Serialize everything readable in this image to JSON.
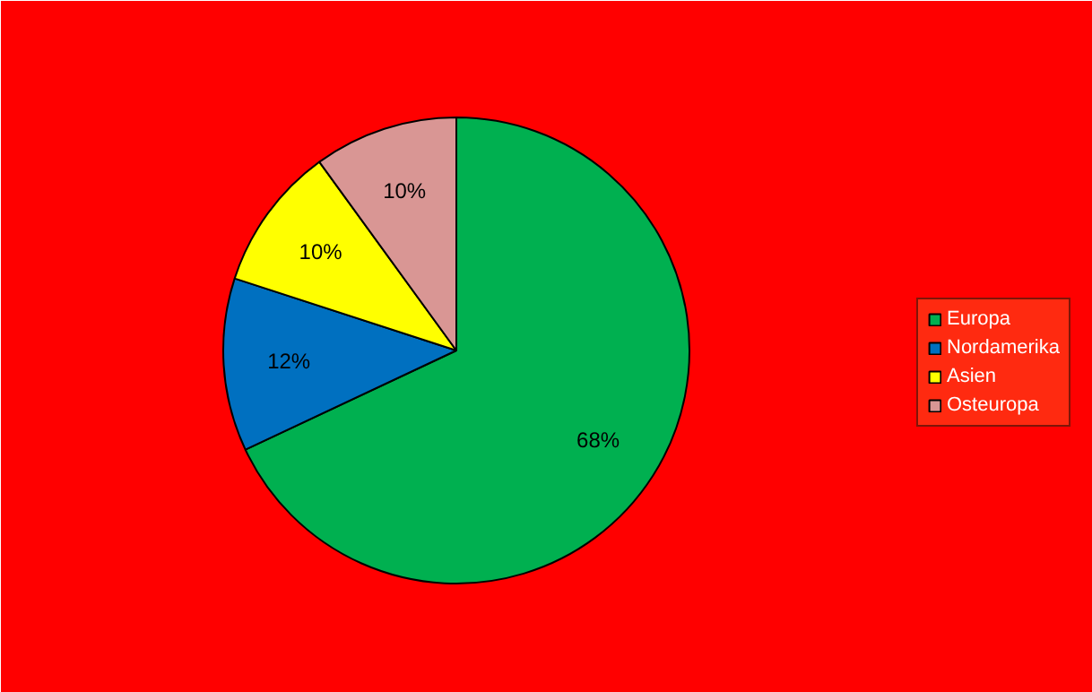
{
  "chart_data": {
    "type": "pie",
    "categories": [
      "Europa",
      "Nordamerika",
      "Asien",
      "Osteuropa"
    ],
    "values": [
      68,
      12,
      10,
      10
    ],
    "colors": [
      "#00b050",
      "#0070c0",
      "#ffff00",
      "#d99694"
    ],
    "value_labels": [
      "68%",
      "12%",
      "10%",
      "10%"
    ],
    "legend": "right"
  }
}
